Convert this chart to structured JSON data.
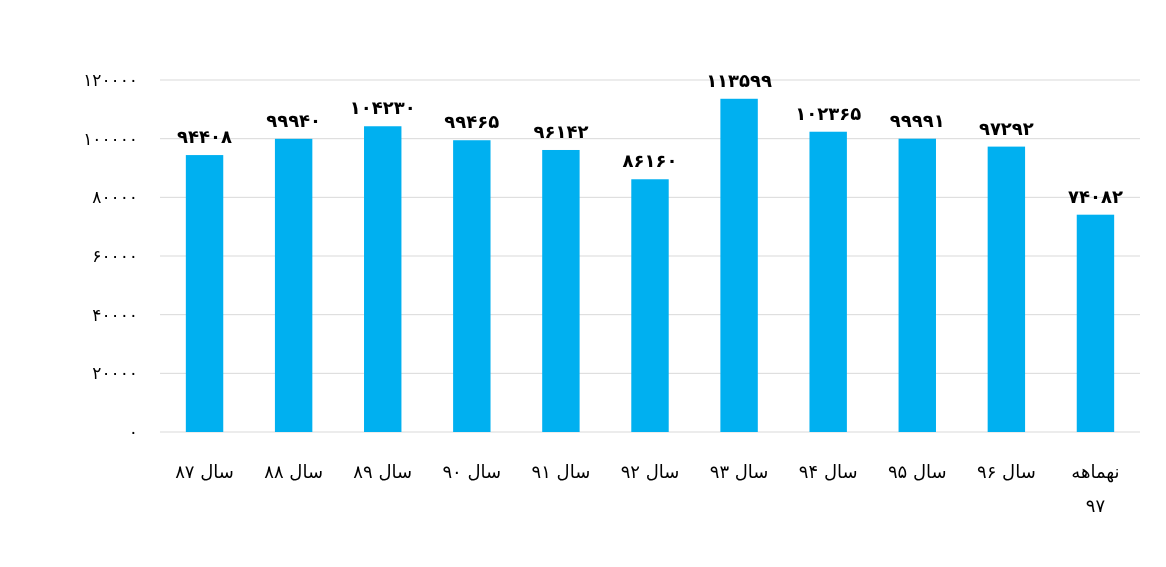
{
  "chart_data": {
    "type": "bar",
    "categories": [
      "سال ۸۷",
      "سال ۸۸",
      "سال ۸۹",
      "سال ۹۰",
      "سال ۹۱",
      "سال ۹۲",
      "سال ۹۳",
      "سال ۹۴",
      "سال ۹۵",
      "سال ۹۶",
      "نهماهه ۹۷"
    ],
    "values": [
      94408,
      99940,
      104230,
      99465,
      96142,
      86160,
      113599,
      102365,
      99991,
      97292,
      74082
    ],
    "value_labels": [
      "۹۴۴۰۸",
      "۹۹۹۴۰",
      "۱۰۴۲۳۰",
      "۹۹۴۶۵",
      "۹۶۱۴۲",
      "۸۶۱۶۰",
      "۱۱۳۵۹۹",
      "۱۰۲۳۶۵",
      "۹۹۹۹۱",
      "۹۷۲۹۲",
      "۷۴۰۸۲"
    ],
    "color": "#00b0f0",
    "ylim": [
      0,
      120000
    ],
    "yticks": [
      {
        "value": 0,
        "label": "۰"
      },
      {
        "value": 20000,
        "label": "۲۰۰۰۰"
      },
      {
        "value": 40000,
        "label": "۴۰۰۰۰"
      },
      {
        "value": 60000,
        "label": "۶۰۰۰۰"
      },
      {
        "value": 80000,
        "label": "۸۰۰۰۰"
      },
      {
        "value": 100000,
        "label": "۱۰۰۰۰۰"
      },
      {
        "value": 120000,
        "label": "۱۲۰۰۰۰"
      }
    ],
    "grid": "y"
  }
}
